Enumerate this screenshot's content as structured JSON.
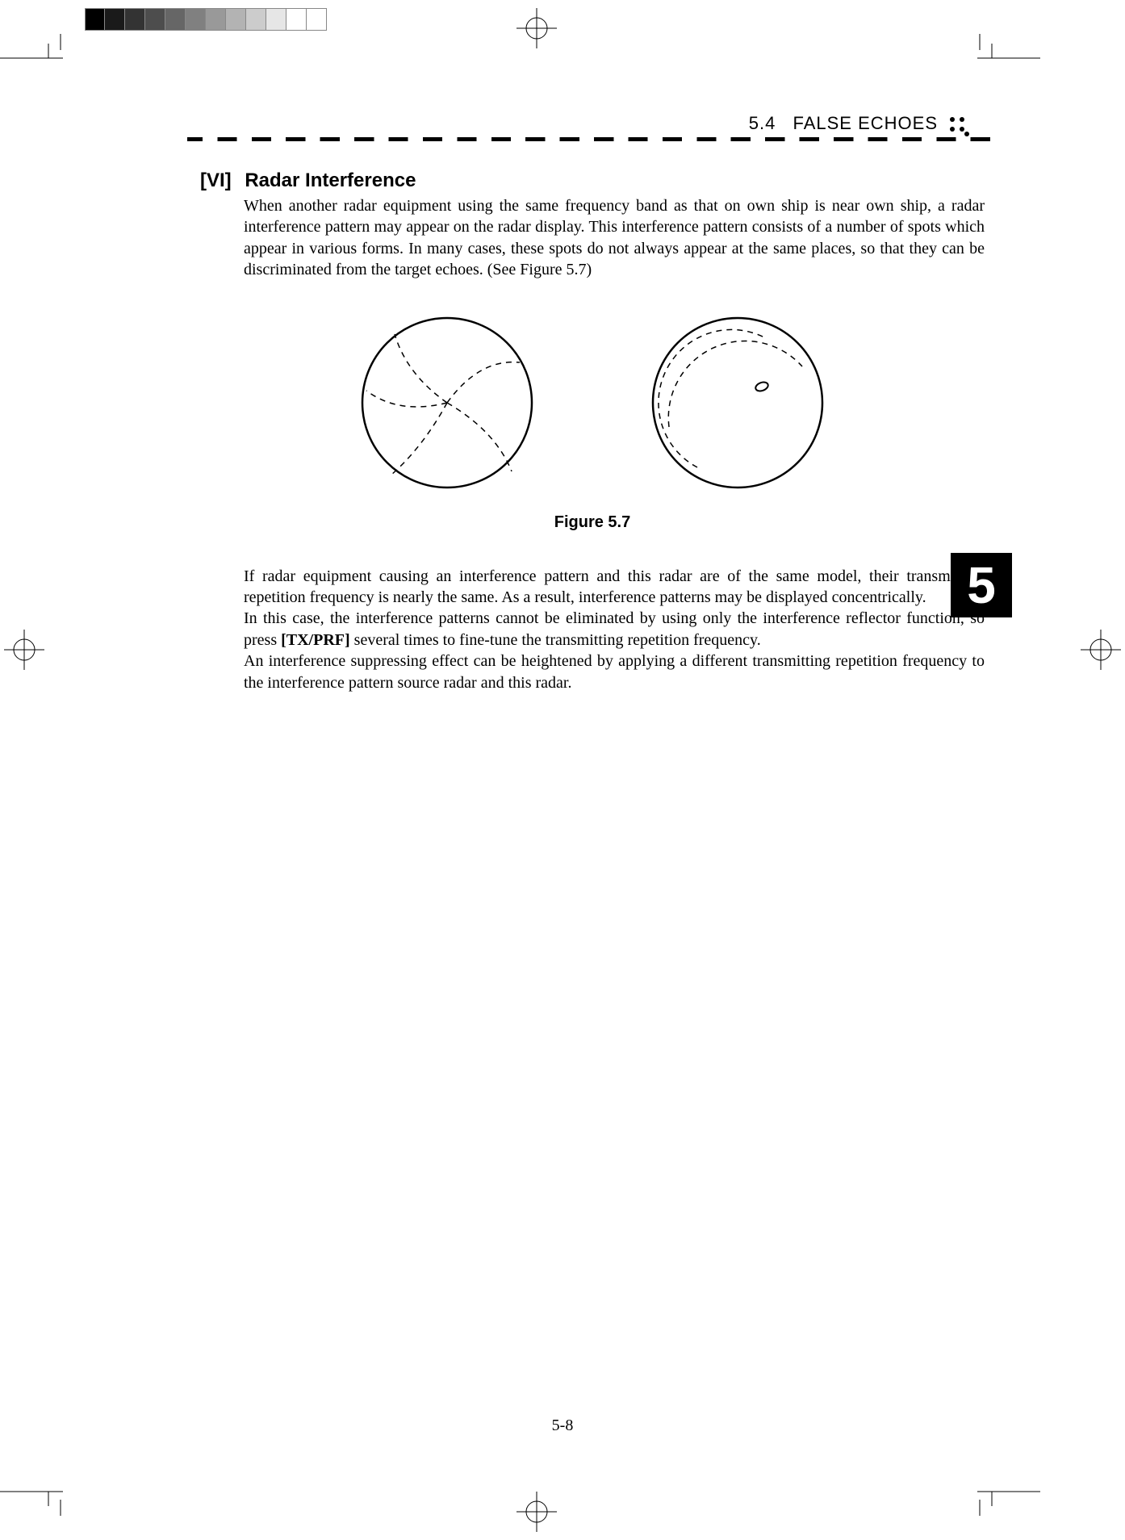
{
  "grayscale_swatches": [
    "#000000",
    "#1a1a1a",
    "#333333",
    "#4d4d4d",
    "#666666",
    "#808080",
    "#999999",
    "#b3b3b3",
    "#cccccc",
    "#e6e6e6",
    "#ffffff",
    "#ffffff"
  ],
  "header": {
    "section_number": "5.4",
    "section_title": "FALSE ECHOES"
  },
  "section": {
    "tag": "[VI]",
    "title": "Radar Interference"
  },
  "para1": "When another radar equipment using the same frequency band as that on own ship is near own ship, a radar interference pattern may appear on the radar display.   This interference pattern consists of a number of spots which appear in various forms.   In many cases, these spots do not always appear at the same places, so that they can be discriminated from the target echoes.    (See Figure 5.7)",
  "figure_caption": "Figure 5.7",
  "para2a": "If radar equipment causing an interference pattern and this radar are of the same model, their transmitting repetition frequency is nearly the same.   As a result, interference patterns may be displayed concentrically.",
  "para2b_pre": "In this case, the interference patterns cannot be eliminated by using only the interference reflector function, so press ",
  "para2b_bold": "[TX/PRF]",
  "para2b_post": " several times to fine-tune the transmitting repetition frequency.",
  "para2c": "An interference suppressing effect can be heightened by applying a different transmitting repetition frequency to the interference pattern source radar and this radar.",
  "chapter_tab": "5",
  "page_number": "5-8",
  "fig_style": {
    "circle_stroke": "#000000",
    "circle_stroke_width": 2.5,
    "dash": "7 6",
    "circle_r": 105
  }
}
